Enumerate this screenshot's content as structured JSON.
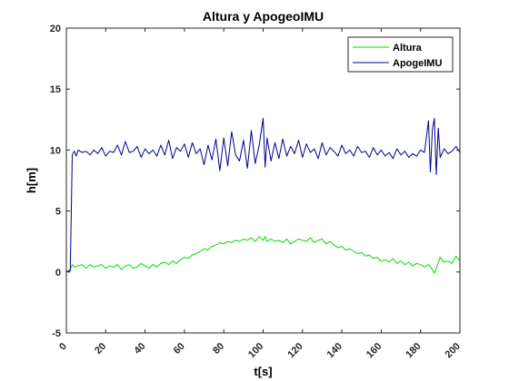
{
  "chart_data": {
    "type": "line",
    "title": "Altura y ApogeoIMU",
    "xlabel": "t[s]",
    "ylabel": "h[m]",
    "xlim": [
      0,
      200
    ],
    "ylim": [
      -5,
      20
    ],
    "xticks": [
      0,
      20,
      40,
      60,
      80,
      100,
      120,
      140,
      160,
      180,
      200
    ],
    "yticks": [
      -5,
      0,
      5,
      10,
      15,
      20
    ],
    "grid": false,
    "legend_position": "top-right",
    "series": [
      {
        "name": "Altura",
        "color": "#00dd00",
        "x": [
          0,
          2,
          3,
          4,
          6,
          8,
          10,
          12,
          14,
          16,
          18,
          20,
          22,
          24,
          26,
          28,
          30,
          32,
          34,
          36,
          38,
          40,
          42,
          44,
          46,
          48,
          50,
          52,
          54,
          56,
          58,
          60,
          62,
          64,
          66,
          68,
          70,
          72,
          74,
          76,
          78,
          80,
          82,
          84,
          86,
          88,
          90,
          92,
          94,
          96,
          98,
          100,
          101,
          102,
          104,
          106,
          108,
          110,
          112,
          114,
          116,
          118,
          120,
          122,
          124,
          126,
          128,
          130,
          132,
          134,
          136,
          138,
          140,
          142,
          144,
          146,
          148,
          150,
          152,
          154,
          156,
          158,
          160,
          162,
          164,
          166,
          168,
          170,
          172,
          174,
          176,
          178,
          180,
          182,
          184,
          186,
          187,
          188,
          190,
          192,
          194,
          196,
          198,
          200
        ],
        "y": [
          0.0,
          0.2,
          0.6,
          0.4,
          0.5,
          0.6,
          0.3,
          0.6,
          0.4,
          0.5,
          0.6,
          0.3,
          0.5,
          0.4,
          0.6,
          0.2,
          0.5,
          0.6,
          0.3,
          0.4,
          0.7,
          0.5,
          0.3,
          0.6,
          0.4,
          0.7,
          0.8,
          0.6,
          0.9,
          0.7,
          1.0,
          1.2,
          1.1,
          1.4,
          1.5,
          1.7,
          1.9,
          1.8,
          2.1,
          2.2,
          2.4,
          2.3,
          2.5,
          2.4,
          2.6,
          2.5,
          2.7,
          2.6,
          2.8,
          2.5,
          2.9,
          2.6,
          2.9,
          2.5,
          2.7,
          2.5,
          2.6,
          2.4,
          2.7,
          2.3,
          2.5,
          2.7,
          2.6,
          2.5,
          2.8,
          2.4,
          2.6,
          2.7,
          2.3,
          2.5,
          2.2,
          2.0,
          2.1,
          1.8,
          1.9,
          1.7,
          1.5,
          1.6,
          1.3,
          1.4,
          1.1,
          1.2,
          0.9,
          1.0,
          0.8,
          1.1,
          0.7,
          0.9,
          0.6,
          0.8,
          0.5,
          0.7,
          0.6,
          0.4,
          0.6,
          0.2,
          -0.1,
          0.3,
          1.2,
          0.8,
          0.9,
          0.7,
          1.3,
          0.9
        ]
      },
      {
        "name": "ApogeIMU",
        "color": "#00008b",
        "x": [
          0,
          2,
          3,
          4,
          5,
          6,
          8,
          10,
          12,
          14,
          16,
          18,
          20,
          22,
          24,
          26,
          28,
          30,
          32,
          34,
          36,
          38,
          40,
          42,
          44,
          46,
          48,
          50,
          52,
          54,
          56,
          58,
          60,
          62,
          64,
          66,
          68,
          70,
          72,
          74,
          76,
          78,
          80,
          82,
          84,
          86,
          88,
          90,
          92,
          94,
          96,
          98,
          100,
          101,
          102,
          104,
          106,
          108,
          110,
          112,
          114,
          116,
          118,
          120,
          122,
          124,
          126,
          128,
          130,
          132,
          134,
          136,
          138,
          140,
          142,
          144,
          146,
          148,
          150,
          152,
          154,
          156,
          158,
          160,
          162,
          164,
          166,
          168,
          170,
          172,
          174,
          176,
          178,
          180,
          182,
          184,
          185,
          186,
          187,
          188,
          189,
          190,
          192,
          194,
          196,
          198,
          200
        ],
        "y": [
          0.0,
          0.1,
          9.6,
          9.9,
          9.5,
          10.0,
          9.8,
          9.9,
          9.6,
          10.0,
          9.7,
          10.2,
          9.5,
          9.9,
          9.8,
          10.4,
          9.6,
          10.7,
          9.8,
          9.9,
          10.3,
          9.4,
          10.1,
          9.7,
          10.0,
          9.5,
          10.4,
          9.6,
          10.8,
          9.3,
          10.2,
          9.9,
          10.5,
          9.4,
          10.6,
          9.7,
          10.1,
          8.8,
          10.4,
          9.2,
          10.9,
          8.3,
          11.0,
          8.7,
          11.5,
          9.6,
          9.1,
          10.8,
          8.5,
          11.6,
          8.9,
          10.4,
          12.6,
          8.6,
          11.0,
          9.1,
          10.6,
          9.3,
          10.9,
          9.5,
          10.3,
          9.7,
          10.8,
          9.4,
          10.5,
          9.8,
          10.1,
          9.3,
          10.6,
          9.6,
          10.2,
          9.9,
          9.5,
          10.4,
          9.7,
          10.0,
          9.5,
          10.3,
          9.8,
          9.9,
          9.4,
          10.2,
          9.6,
          10.0,
          9.5,
          9.8,
          9.3,
          10.1,
          9.6,
          9.9,
          9.4,
          9.7,
          9.5,
          10.0,
          9.8,
          12.4,
          8.2,
          11.7,
          12.6,
          8.0,
          11.8,
          9.4,
          10.1,
          9.7,
          9.9,
          10.3,
          9.8
        ]
      }
    ]
  }
}
